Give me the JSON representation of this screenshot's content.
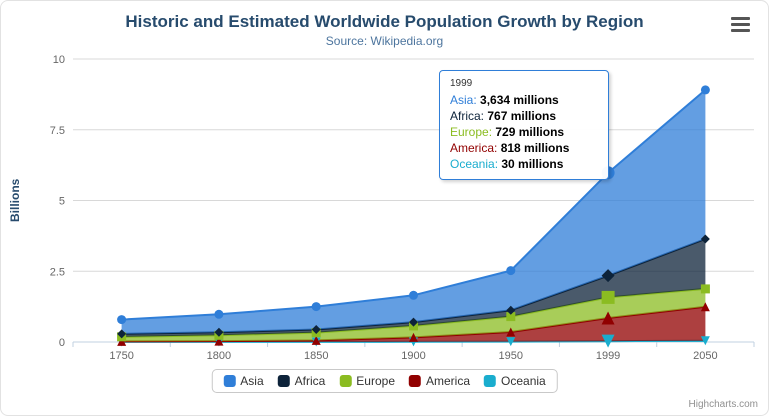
{
  "credits": {
    "label": "Highcharts.com"
  },
  "icons": {
    "export_menu": "hamburger"
  },
  "tooltip": {
    "header": "1999",
    "rows": [
      {
        "name": "Asia",
        "value": "3,634 millions"
      },
      {
        "name": "Africa",
        "value": "767 millions"
      },
      {
        "name": "Europe",
        "value": "729 millions"
      },
      {
        "name": "America",
        "value": "818 millions"
      },
      {
        "name": "Oceania",
        "value": "30 millions"
      }
    ]
  },
  "chart_data": {
    "type": "area",
    "stacking": "normal",
    "title": "Historic and Estimated Worldwide Population Growth by Region",
    "subtitle": "Source: Wikipedia.org",
    "xlabel": "",
    "ylabel": "Billions",
    "unit": "millions",
    "ylim": [
      0,
      10
    ],
    "yticks": [
      0,
      2.5,
      5,
      7.5,
      10
    ],
    "grid": true,
    "legend_position": "bottom",
    "categories": [
      "1750",
      "1800",
      "1850",
      "1900",
      "1950",
      "1999",
      "2050"
    ],
    "series": [
      {
        "name": "Asia",
        "color": "#2f7ed8",
        "marker": "circle",
        "values": [
          502,
          635,
          809,
          947,
          1402,
          3634,
          5268
        ]
      },
      {
        "name": "Africa",
        "color": "#0d233a",
        "marker": "diamond",
        "values": [
          106,
          107,
          111,
          133,
          221,
          767,
          1766
        ]
      },
      {
        "name": "Europe",
        "color": "#8bbc21",
        "marker": "square",
        "values": [
          163,
          203,
          276,
          408,
          547,
          729,
          628
        ]
      },
      {
        "name": "America",
        "color": "#910000",
        "marker": "triangle",
        "values": [
          18,
          31,
          54,
          156,
          339,
          818,
          1201
        ]
      },
      {
        "name": "Oceania",
        "color": "#1aadce",
        "marker": "triangle-down",
        "values": [
          2,
          2,
          2,
          6,
          13,
          30,
          46
        ]
      }
    ]
  }
}
